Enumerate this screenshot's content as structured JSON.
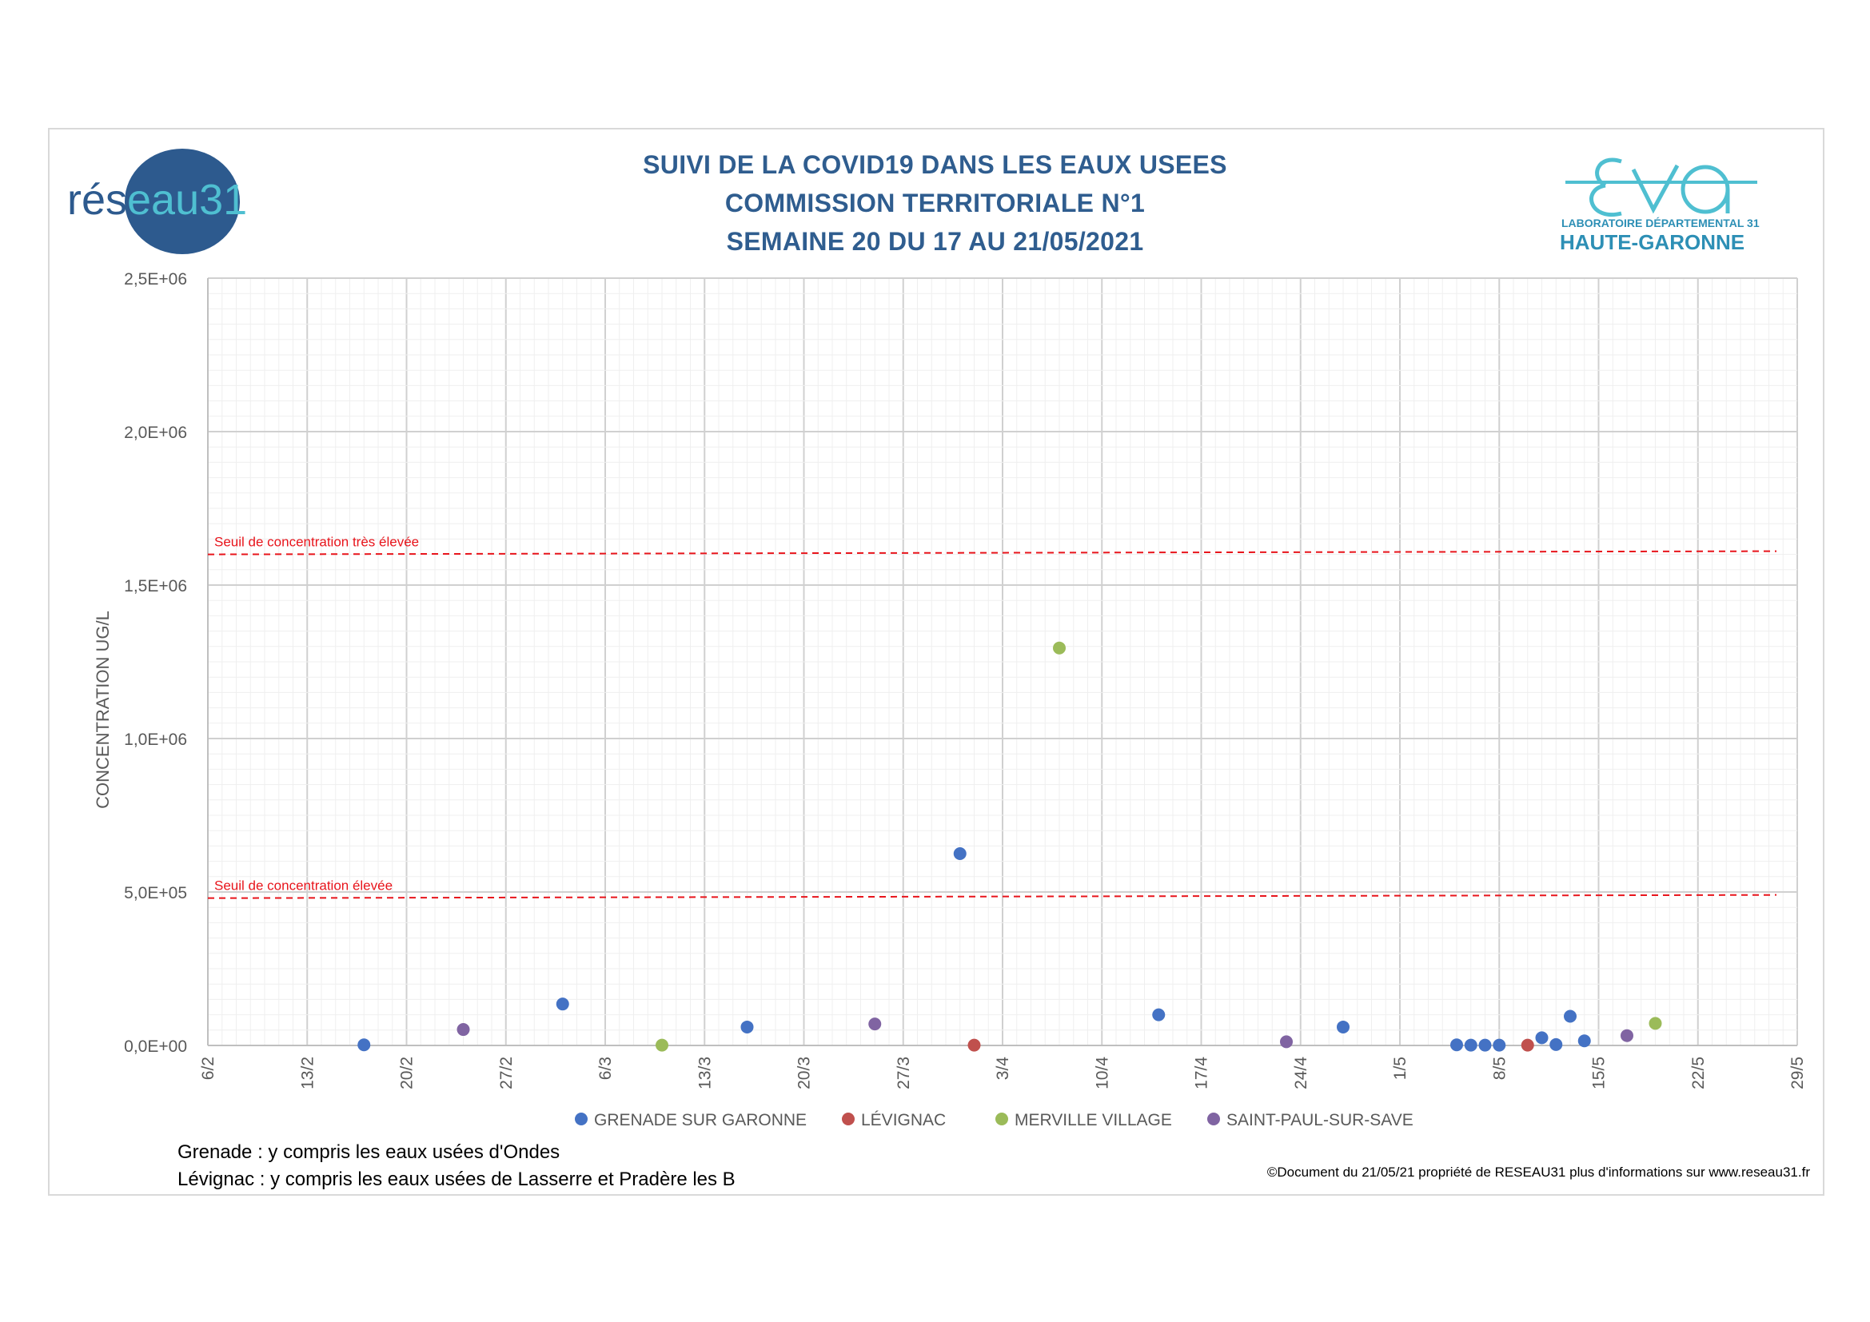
{
  "header": {
    "title_lines": [
      "SUIVI DE LA COVID19 DANS LES EAUX USEES",
      "COMMISSION TERRITORIALE N°1",
      "SEMAINE 20 DU 17 AU 21/05/2021"
    ],
    "logo_left_text": "réseau31",
    "logo_right_line1": "LABORATOIRE DÉPARTEMENTAL 31",
    "logo_right_line2": "HAUTE-GARONNE"
  },
  "chart_data": {
    "type": "scatter",
    "ylabel": "CONCENTRATION UG/L",
    "xlabel": "",
    "ylim": [
      0,
      2500000
    ],
    "yticks": [
      "0,0E+00",
      "5,0E+05",
      "1,0E+06",
      "1,5E+06",
      "2,0E+06",
      "2,5E+06"
    ],
    "xlim": [
      "2021-02-06",
      "2021-05-29"
    ],
    "xticks": [
      "6/2",
      "13/2",
      "20/2",
      "27/2",
      "6/3",
      "13/3",
      "20/3",
      "27/3",
      "3/4",
      "10/4",
      "17/4",
      "24/4",
      "1/5",
      "8/5",
      "15/5",
      "22/5",
      "29/5"
    ],
    "grid": true,
    "legend_position": "bottom",
    "thresholds": [
      {
        "label": "Seuil de concentration très élevée",
        "value": 1600000,
        "color": "#e8141b"
      },
      {
        "label": "Seuil de concentration élevée",
        "value": 480000,
        "color": "#e8141b"
      }
    ],
    "series": [
      {
        "name": "GRENADE SUR GARONNE",
        "color": "#4472c4",
        "points": [
          {
            "x": "2021-02-17",
            "y": 2000
          },
          {
            "x": "2021-03-03",
            "y": 135000
          },
          {
            "x": "2021-03-16",
            "y": 60000
          },
          {
            "x": "2021-03-31",
            "y": 625000
          },
          {
            "x": "2021-04-14",
            "y": 100000
          },
          {
            "x": "2021-04-27",
            "y": 60000
          },
          {
            "x": "2021-05-05",
            "y": 2000
          },
          {
            "x": "2021-05-06",
            "y": 1000
          },
          {
            "x": "2021-05-07",
            "y": 1000
          },
          {
            "x": "2021-05-08",
            "y": 1000
          },
          {
            "x": "2021-05-11",
            "y": 25000
          },
          {
            "x": "2021-05-12",
            "y": 3000
          },
          {
            "x": "2021-05-13",
            "y": 95000
          },
          {
            "x": "2021-05-14",
            "y": 15000
          }
        ]
      },
      {
        "name": "LÉVIGNAC",
        "color": "#c0504d",
        "points": [
          {
            "x": "2021-04-01",
            "y": 1000
          },
          {
            "x": "2021-05-10",
            "y": 1000
          }
        ]
      },
      {
        "name": "MERVILLE VILLAGE",
        "color": "#9bbb59",
        "points": [
          {
            "x": "2021-03-10",
            "y": 1000
          },
          {
            "x": "2021-04-07",
            "y": 1295000
          },
          {
            "x": "2021-05-19",
            "y": 72000
          }
        ]
      },
      {
        "name": "SAINT-PAUL-SUR-SAVE",
        "color": "#8064a2",
        "points": [
          {
            "x": "2021-02-24",
            "y": 52000
          },
          {
            "x": "2021-03-25",
            "y": 70000
          },
          {
            "x": "2021-04-23",
            "y": 12000
          },
          {
            "x": "2021-05-17",
            "y": 32000
          }
        ]
      }
    ]
  },
  "notes": [
    "Grenade : y compris les eaux usées d'Ondes",
    "Lévignac : y compris les eaux usées de Lasserre et Pradère les B"
  ],
  "copyright": "©Document du 21/05/21 propriété de RESEAU31 plus d'informations sur www.reseau31.fr"
}
